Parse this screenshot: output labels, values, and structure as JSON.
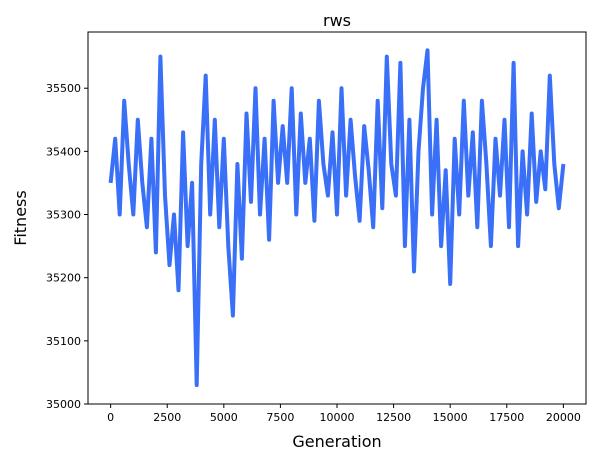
{
  "chart_data": {
    "type": "line",
    "title": "rws",
    "x_label": "Generation",
    "y_label": "Fitness",
    "x": [
      0,
      200,
      400,
      600,
      800,
      1000,
      1200,
      1400,
      1600,
      1800,
      2000,
      2200,
      2400,
      2600,
      2800,
      3000,
      3200,
      3400,
      3600,
      3800,
      4000,
      4200,
      4400,
      4600,
      4800,
      5000,
      5200,
      5400,
      5600,
      5800,
      6000,
      6200,
      6400,
      6600,
      6800,
      7000,
      7200,
      7400,
      7600,
      7800,
      8000,
      8200,
      8400,
      8600,
      8800,
      9000,
      9200,
      9400,
      9600,
      9800,
      10000,
      10200,
      10400,
      10600,
      10800,
      11000,
      11200,
      11400,
      11600,
      11800,
      12000,
      12200,
      12400,
      12600,
      12800,
      13000,
      13200,
      13400,
      13600,
      13800,
      14000,
      14200,
      14400,
      14600,
      14800,
      15000,
      15200,
      15400,
      15600,
      15800,
      16000,
      16200,
      16400,
      16600,
      16800,
      17000,
      17200,
      17400,
      17600,
      17800,
      18000,
      18200,
      18400,
      18600,
      18800,
      19000,
      19200,
      19400,
      19600,
      19800,
      20000
    ],
    "series": [
      {
        "name": "rws",
        "color": "#3a6ff7",
        "values": [
          35350,
          35420,
          35300,
          35480,
          35380,
          35300,
          35450,
          35350,
          35280,
          35420,
          35240,
          35550,
          35330,
          35220,
          35300,
          35180,
          35430,
          35250,
          35350,
          35030,
          35380,
          35520,
          35300,
          35450,
          35280,
          35420,
          35250,
          35140,
          35380,
          35230,
          35460,
          35320,
          35500,
          35300,
          35420,
          35260,
          35480,
          35350,
          35440,
          35350,
          35500,
          35300,
          35460,
          35350,
          35420,
          35290,
          35480,
          35380,
          35330,
          35430,
          35300,
          35500,
          35330,
          35450,
          35360,
          35290,
          35440,
          35370,
          35280,
          35480,
          35310,
          35550,
          35380,
          35330,
          35540,
          35250,
          35450,
          35210,
          35400,
          35500,
          35560,
          35300,
          35450,
          35250,
          35370,
          35190,
          35420,
          35300,
          35480,
          35330,
          35430,
          35280,
          35480,
          35380,
          35250,
          35420,
          35330,
          35450,
          35280,
          35540,
          35250,
          35400,
          35300,
          35460,
          35320,
          35400,
          35340,
          35520,
          35380,
          35310,
          35380
        ]
      }
    ],
    "xlim": [
      -1000,
      21000
    ],
    "ylim": [
      35000,
      35589
    ],
    "xticks": [
      0,
      2500,
      5000,
      7500,
      10000,
      12500,
      15000,
      17500,
      20000
    ],
    "yticks": [
      35000,
      35100,
      35200,
      35300,
      35400,
      35500
    ]
  }
}
